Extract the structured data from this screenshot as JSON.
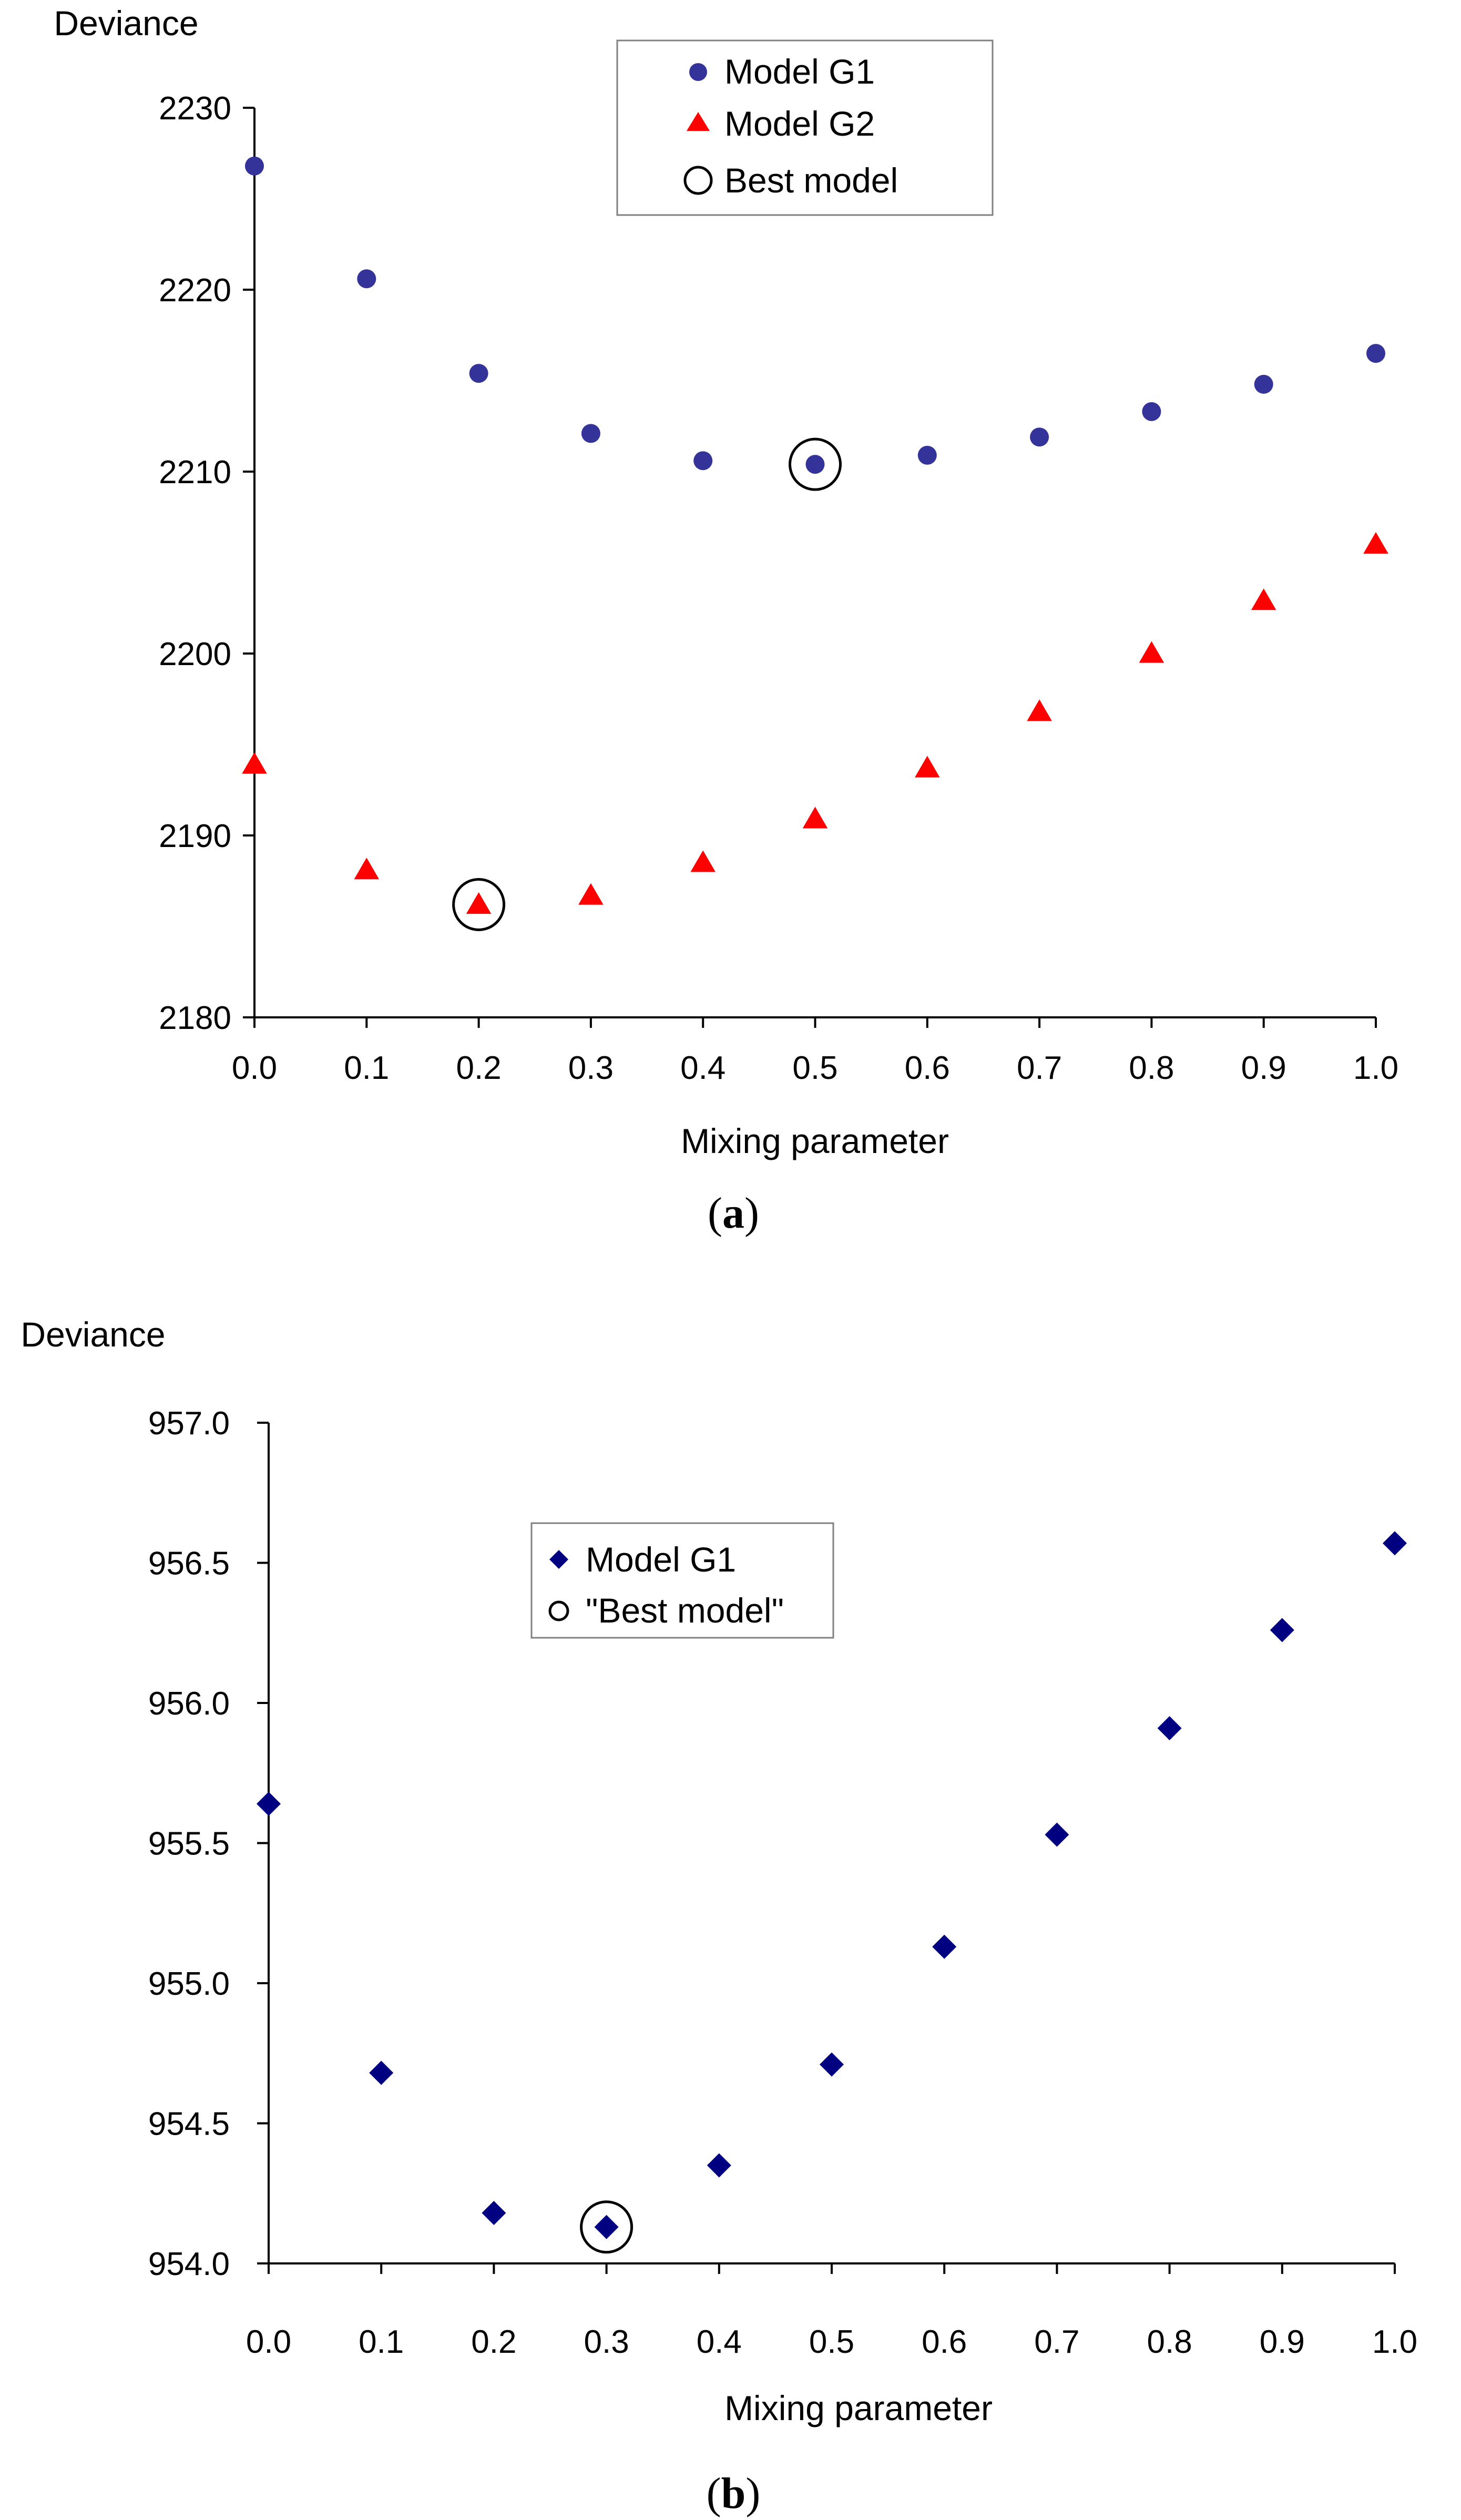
{
  "chart_data": [
    {
      "type": "scatter",
      "panel": "(a)",
      "panel_label": "a",
      "title": "",
      "xlabel": "Mixing parameter",
      "ylabel": "Deviance",
      "xlim": [
        0.0,
        1.0
      ],
      "ylim": [
        2180,
        2230
      ],
      "x_ticks": [
        "0.0",
        "0.1",
        "0.2",
        "0.3",
        "0.4",
        "0.5",
        "0.6",
        "0.7",
        "0.8",
        "0.9",
        "1.0"
      ],
      "y_ticks": [
        "2180",
        "2190",
        "2200",
        "2210",
        "2220",
        "2230"
      ],
      "grid": false,
      "legend_position": "top-center",
      "x": [
        0.0,
        0.1,
        0.2,
        0.3,
        0.4,
        0.5,
        0.6,
        0.7,
        0.8,
        0.9,
        1.0
      ],
      "series": [
        {
          "name": "Model G1",
          "marker": "circle",
          "color": "#333399",
          "values": [
            2226.8,
            2220.6,
            2215.4,
            2212.1,
            2210.6,
            2210.4,
            2210.9,
            2211.9,
            2213.3,
            2214.8,
            2216.5
          ]
        },
        {
          "name": "Model G2",
          "marker": "triangle",
          "color": "#ff0000",
          "values": [
            2193.9,
            2188.1,
            2186.2,
            2186.7,
            2188.5,
            2190.9,
            2193.7,
            2196.8,
            2200.0,
            2202.9,
            2206.0
          ]
        }
      ],
      "best": [
        {
          "label": "Best model",
          "series": "Model G1",
          "x": 0.5,
          "y": 2210.4
        },
        {
          "label": "Best model",
          "series": "Model G2",
          "x": 0.2,
          "y": 2186.2
        }
      ]
    },
    {
      "type": "scatter",
      "panel": "(b)",
      "panel_label": "b",
      "title": "",
      "xlabel": "Mixing parameter",
      "ylabel": "Deviance",
      "xlim": [
        0.0,
        1.0
      ],
      "ylim": [
        954.0,
        957.0
      ],
      "x_ticks": [
        "0.0",
        "0.1",
        "0.2",
        "0.3",
        "0.4",
        "0.5",
        "0.6",
        "0.7",
        "0.8",
        "0.9",
        "1.0"
      ],
      "y_ticks": [
        "954.0",
        "954.5",
        "955.0",
        "955.5",
        "956.0",
        "956.5",
        "957.0"
      ],
      "grid": false,
      "legend_position": "top-center",
      "x": [
        0.0,
        0.1,
        0.2,
        0.3,
        0.4,
        0.5,
        0.6,
        0.7,
        0.8,
        0.9,
        1.0
      ],
      "series": [
        {
          "name": "Model G1",
          "marker": "diamond",
          "color": "#000080",
          "values": [
            955.64,
            954.68,
            954.18,
            954.13,
            954.35,
            954.71,
            955.13,
            955.53,
            955.91,
            956.26,
            956.57
          ]
        }
      ],
      "best": [
        {
          "label": "\"Best model\"",
          "series": "Model G1",
          "x": 0.3,
          "y": 954.13
        }
      ]
    }
  ]
}
